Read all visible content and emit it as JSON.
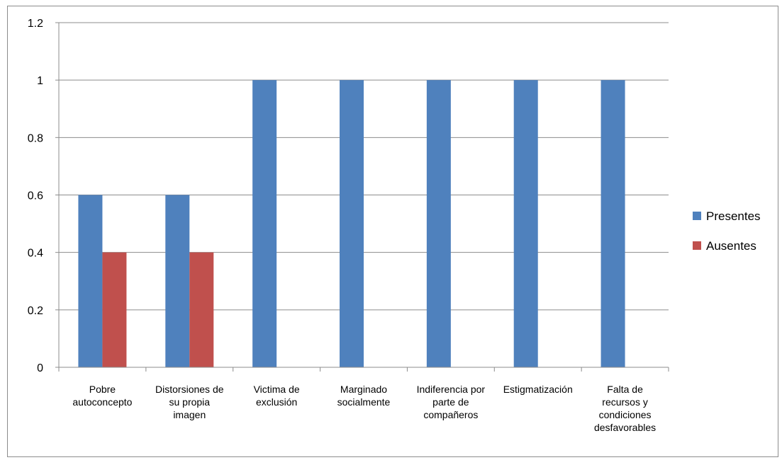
{
  "chart_data": {
    "type": "bar",
    "categories": [
      [
        "Pobre",
        "autoconcepto"
      ],
      [
        "Distorsiones de",
        "su propia",
        "imagen"
      ],
      [
        "Victima de",
        "exclusión"
      ],
      [
        "Marginado",
        "socialmente"
      ],
      [
        "Indiferencia por",
        "parte de",
        "compañeros"
      ],
      [
        "Estigmatización"
      ],
      [
        "Falta de",
        "recursos  y",
        "condiciones",
        "desfavorables"
      ]
    ],
    "series": [
      {
        "name": "Presentes",
        "color": "#4f81bd",
        "values": [
          0.6,
          0.6,
          1,
          1,
          1,
          1,
          1
        ]
      },
      {
        "name": "Ausentes",
        "color": "#c0504d",
        "values": [
          0.4,
          0.4,
          0,
          0,
          0,
          0,
          0
        ]
      }
    ],
    "ylim": [
      0,
      1.2
    ],
    "yticks": [
      "0",
      "0.2",
      "0.4",
      "0.6",
      "0.8",
      "1",
      "1.2"
    ],
    "grid": true,
    "legend_position": "right"
  }
}
